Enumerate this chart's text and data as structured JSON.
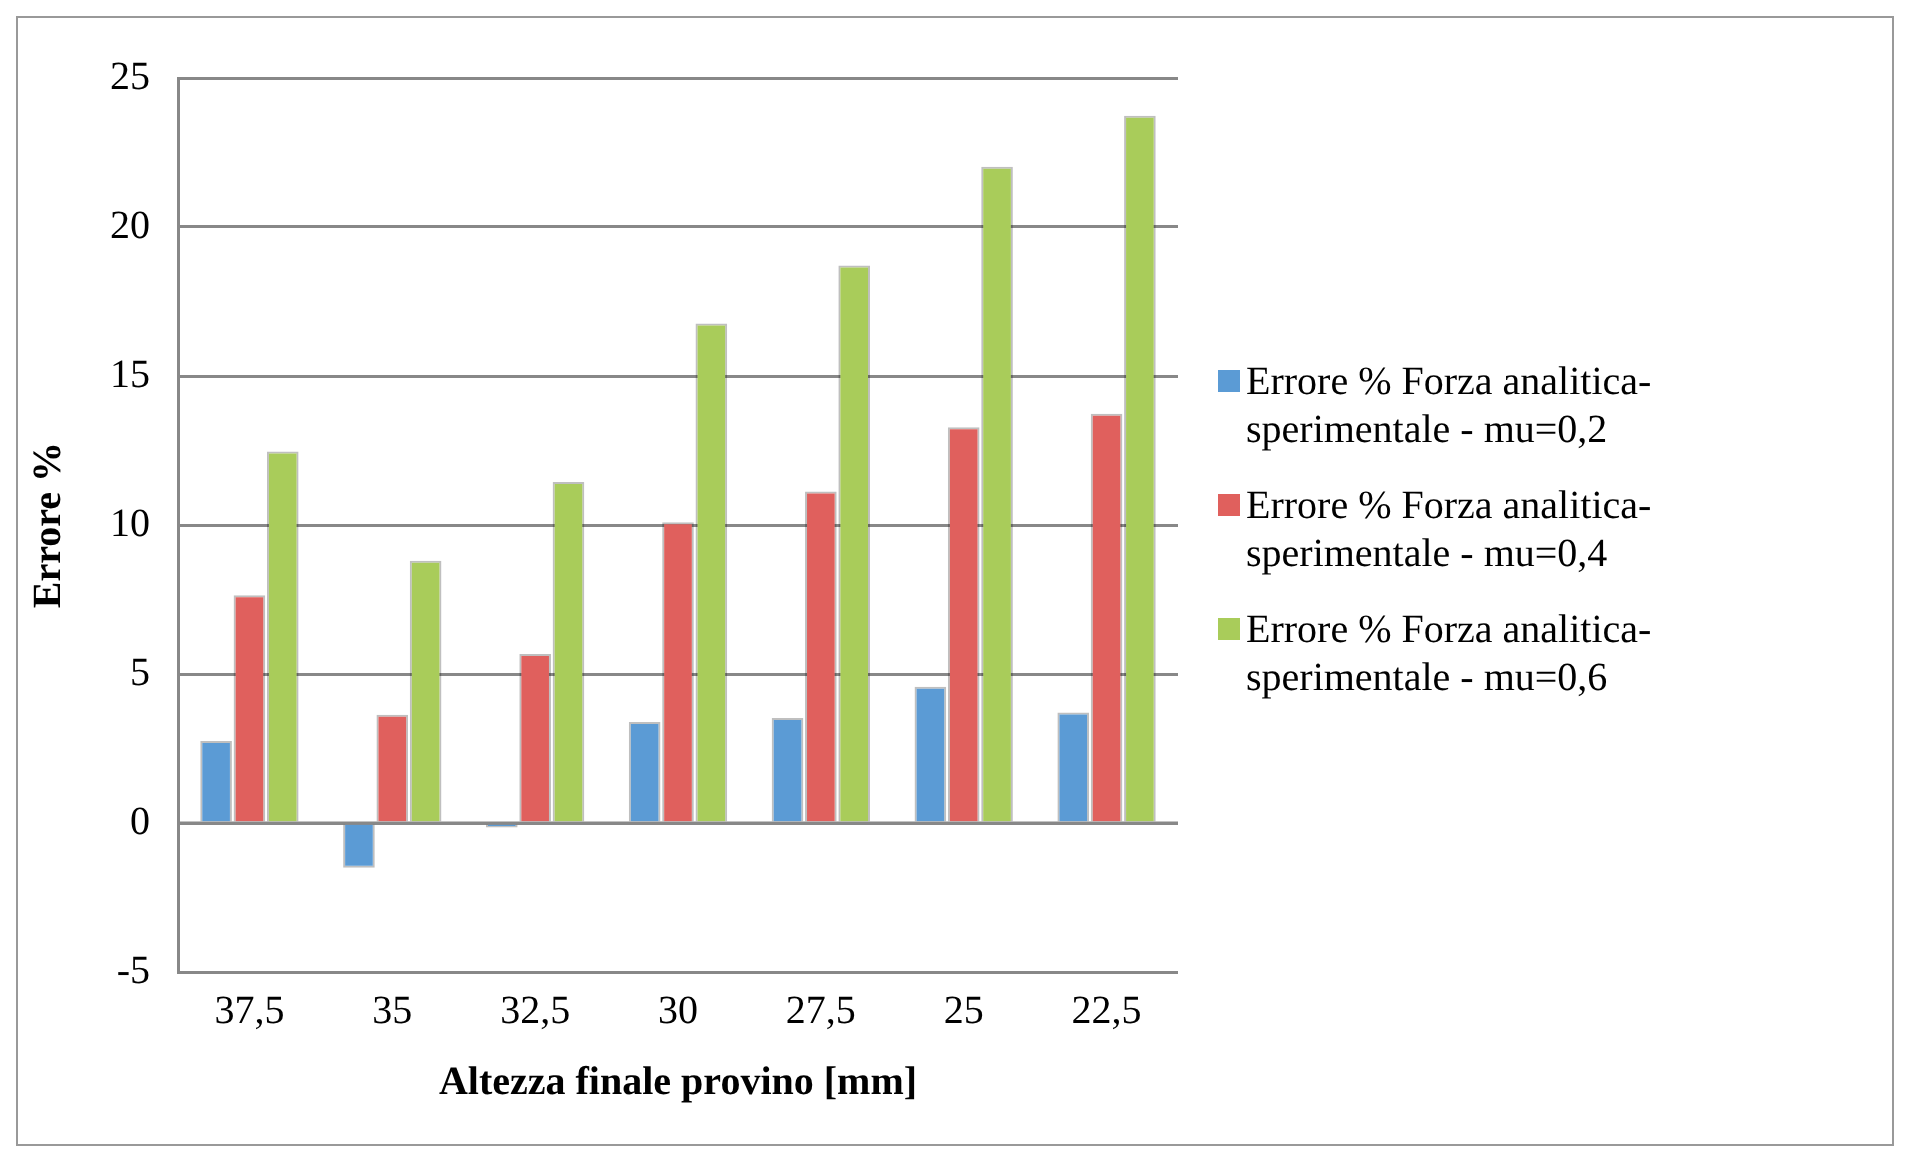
{
  "chart_data": {
    "type": "bar",
    "xlabel": "Altezza finale provino [mm]",
    "ylabel": "Errore %",
    "categories": [
      "37,5",
      "35",
      "32,5",
      "30",
      "27,5",
      "25",
      "22,5"
    ],
    "series": [
      {
        "name": "Errore % Forza analitica-sperimentale - mu=0,2",
        "color": "#5b9bd5",
        "values": [
          2.75,
          -1.5,
          -0.15,
          3.39,
          3.52,
          4.57,
          3.71
        ]
      },
      {
        "name": "Errore % Forza analitica-sperimentale - mu=0,4",
        "color": "#e0605d",
        "values": [
          7.64,
          3.63,
          5.67,
          10.09,
          11.12,
          13.28,
          13.73
        ]
      },
      {
        "name": "Errore % Forza analitica-sperimentale - mu=0,6",
        "color": "#a9cc5a",
        "values": [
          12.47,
          8.8,
          11.44,
          16.76,
          18.71,
          22.02,
          23.73
        ]
      }
    ],
    "ylim": [
      -5,
      25
    ],
    "yticks": [
      -5,
      0,
      5,
      10,
      15,
      20,
      25
    ],
    "grid": "y",
    "legend": "right"
  }
}
